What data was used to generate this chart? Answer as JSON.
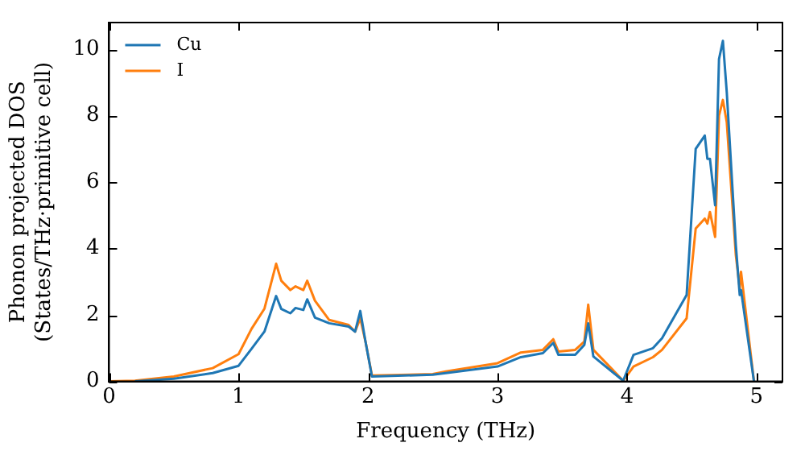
{
  "chart_data": {
    "type": "line",
    "xlabel": "Frequency (THz)",
    "ylabel": "Phonon projected DOS\n(States/THz·primitive cell)",
    "x": [
      0,
      0.2,
      0.5,
      0.8,
      1.0,
      1.1,
      1.2,
      1.29,
      1.33,
      1.4,
      1.44,
      1.5,
      1.53,
      1.59,
      1.7,
      1.85,
      1.9,
      1.94,
      1.98,
      2.03,
      2.5,
      2.6,
      3.0,
      3.18,
      3.35,
      3.43,
      3.47,
      3.6,
      3.67,
      3.7,
      3.74,
      3.97,
      4.05,
      4.2,
      4.27,
      4.46,
      4.53,
      4.6,
      4.62,
      4.64,
      4.68,
      4.71,
      4.74,
      4.77,
      4.84,
      4.87,
      4.88,
      4.98
    ],
    "series": [
      {
        "name": "Cu",
        "color": "#1f77b4",
        "values": [
          null,
          0,
          0.08,
          0.25,
          0.47,
          0.98,
          1.5,
          2.57,
          2.18,
          2.05,
          2.21,
          2.15,
          2.47,
          1.92,
          1.75,
          1.65,
          1.5,
          2.12,
          1.2,
          0.15,
          0.2,
          0.25,
          0.45,
          0.73,
          0.85,
          1.16,
          0.8,
          0.8,
          1.1,
          1.75,
          0.75,
          0.02,
          0.8,
          1.0,
          1.3,
          2.6,
          7.0,
          7.4,
          6.7,
          6.7,
          5.3,
          9.7,
          10.25,
          8.7,
          4.1,
          2.6,
          2.75,
          0
        ]
      },
      {
        "name": "I",
        "color": "#ff7f0e",
        "values": [
          0,
          0.02,
          0.15,
          0.4,
          0.82,
          1.58,
          2.19,
          3.54,
          3.03,
          2.75,
          2.86,
          2.75,
          3.03,
          2.43,
          1.85,
          1.7,
          1.5,
          1.9,
          1.2,
          0.18,
          0.22,
          0.3,
          0.55,
          0.87,
          0.95,
          1.27,
          0.9,
          0.95,
          1.2,
          2.31,
          0.95,
          0.02,
          0.45,
          0.73,
          0.95,
          1.9,
          4.6,
          4.9,
          4.75,
          5.1,
          4.35,
          8.0,
          8.47,
          7.8,
          3.8,
          2.8,
          3.3,
          0
        ]
      }
    ],
    "xlim": [
      0,
      5.2
    ],
    "xticks": [
      0,
      1,
      2,
      3,
      4,
      5
    ],
    "ylim": [
      0,
      10.8
    ],
    "yticks": [
      0,
      2,
      4,
      6,
      8,
      10
    ],
    "legend": "top left",
    "grid": false,
    "marker": "none",
    "line_style": "solid"
  }
}
